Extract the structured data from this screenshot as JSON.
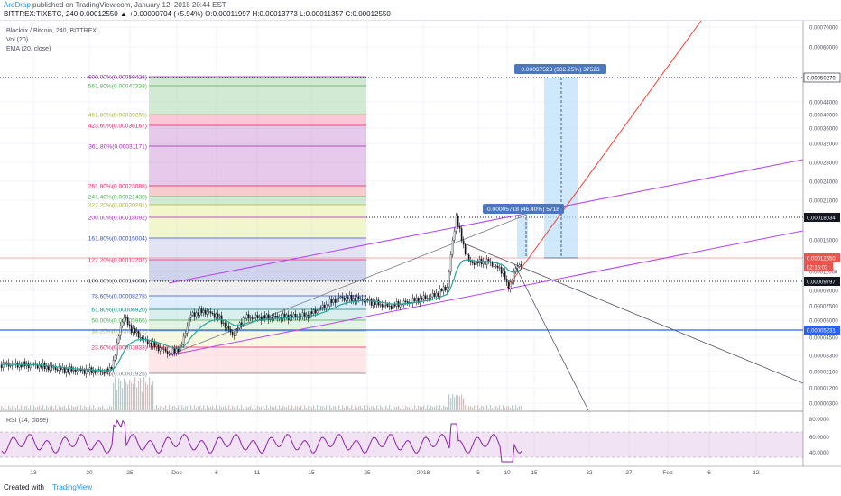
{
  "header": {
    "author": "AroDrap",
    "published": "published on TradingView.com, January 12, 2018 20:44 EST",
    "ohlc": "BITTREX:TIXBTC, 240  0.00012550 ▲ +0.00000704 (+5.94%)  O:0.00011997  H:0.00013773  L:0.00011357  C:0.00012550"
  },
  "legend": {
    "title": "Blocktix / Bitcoin, 240, BITTREX",
    "vol": "Vol (20)",
    "ema": "EMA (20, close)",
    "rsi": "RSI (14, close)"
  },
  "footer": {
    "created": "Created with",
    "brand": "TradingView"
  },
  "colors": {
    "up": "#26a69a",
    "down": "#ef5350",
    "fib_purple": "#9c27b0",
    "channel": "#b542f5",
    "price_line": "#ef5350",
    "blue_line": "#2962ff",
    "rsi_line": "#8e24aa",
    "projection": "#bbdefb"
  },
  "chart_data": {
    "type": "candlestick",
    "price_axis": {
      "ticks": [
        "0.00070000",
        "0.00060000",
        "0.00050000",
        "0.00044000",
        "0.00040000",
        "0.00036000",
        "0.00032000",
        "0.00028000",
        "0.00024000",
        "0.00021000",
        "0.00015000",
        "0.00011000",
        "0.00009000",
        "0.00007500",
        "0.00006000",
        "0.00004500",
        "0.00003300",
        "0.00002100",
        "0.00001200",
        "0.00000300"
      ]
    },
    "price_labels": [
      {
        "text": "0.00050279",
        "bg": "#ffffff",
        "fg": "#131722",
        "border": "#131722"
      },
      {
        "text": "0.00018034",
        "bg": "#131722",
        "fg": "#ffffff"
      },
      {
        "text": "0.00012550",
        "bg": "#ef5350",
        "fg": "#ffffff"
      },
      {
        "text": "02:15:03",
        "bg": "#ef5350",
        "fg": "#ffffff"
      },
      {
        "text": "0.00009797",
        "bg": "#131722",
        "fg": "#ffffff"
      },
      {
        "text": "0.00005231",
        "bg": "#2962ff",
        "fg": "#ffffff"
      }
    ],
    "time_axis": [
      "13",
      "20",
      "25",
      "Dec",
      "6",
      "11",
      "15",
      "25",
      "2018",
      "5",
      "10",
      "15",
      "22",
      "27",
      "Feb",
      "6",
      "12"
    ],
    "fib_levels": [
      {
        "label": "600.00%(0.00050426)",
        "color": "#9c27b0"
      },
      {
        "label": "561.80%(0.00047338)",
        "color": "#4caf50"
      },
      {
        "label": "461.80%(0.00039255)",
        "color": "#aeb43a"
      },
      {
        "label": "423.60%(0.00036167)",
        "color": "#e91e63"
      },
      {
        "label": "361.80%(0.00031171)",
        "color": "#9c27b0"
      },
      {
        "label": "261.80%(0.00023088)",
        "color": "#e91e63"
      },
      {
        "label": "241.40%(0.00021438)",
        "color": "#4caf50"
      },
      {
        "label": "227.20%(0.00020291)",
        "color": "#aeb43a"
      },
      {
        "label": "200.00%(0.00018092)",
        "color": "#9c27b0"
      },
      {
        "label": "161.80%(0.00015004)",
        "color": "#3f51b5"
      },
      {
        "label": "127.20%(0.00012207)",
        "color": "#e91e63"
      },
      {
        "label": "100.00%(0.00010008)",
        "color": "#787b86"
      },
      {
        "label": "78.60%(0.00008278)",
        "color": "#3f51b5"
      },
      {
        "label": "61.80%(0.00006920)",
        "color": "#00897b"
      },
      {
        "label": "50.00%(0.00005966)",
        "color": "#4caf50"
      },
      {
        "label": "38.20%(0.00005012)",
        "color": "#aeb43a"
      },
      {
        "label": "23.60%(0.00003833)",
        "color": "#e91e63"
      },
      {
        "label": "0.00%(0.00001925)",
        "color": "#787b86"
      }
    ],
    "measure_labels": [
      "0.00037523 (302.25%) 37523",
      "0.00005718 (46.40%) 5718"
    ],
    "rsi_axis": [
      "80.0000",
      "60.0000",
      "40.0000"
    ]
  }
}
